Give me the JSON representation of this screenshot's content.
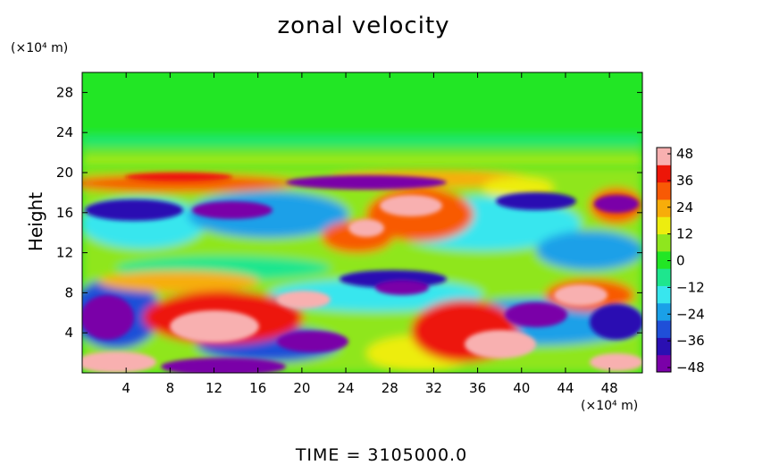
{
  "title": "zonal velocity",
  "x_unit": "(×10⁴ m)",
  "y_unit": "(×10⁴ m)",
  "ylabel": "Height",
  "footer": "TIME  =  3105000.0",
  "chart_data": {
    "type": "heatmap",
    "title": "zonal velocity",
    "xlabel": "",
    "ylabel": "Height",
    "xlim": [
      0,
      51
    ],
    "ylim": [
      0,
      30
    ],
    "x_ticks": [
      4,
      8,
      12,
      16,
      20,
      24,
      28,
      32,
      36,
      40,
      44,
      48
    ],
    "y_ticks": [
      4,
      8,
      12,
      16,
      20,
      24,
      28
    ],
    "colorbar": {
      "ticks": [
        48,
        36,
        24,
        12,
        0,
        -12,
        -24,
        -36,
        -48
      ],
      "range": [
        -48,
        48
      ],
      "colors": [
        "#7a00a8",
        "#2a0fb2",
        "#1f4fd8",
        "#1aa0e8",
        "#38e6ee",
        "#1ee68e",
        "#22e625",
        "#8fe61e",
        "#eded0f",
        "#f7ad0a",
        "#f85a05",
        "#ed1608",
        "#f8b0b0"
      ]
    }
  }
}
